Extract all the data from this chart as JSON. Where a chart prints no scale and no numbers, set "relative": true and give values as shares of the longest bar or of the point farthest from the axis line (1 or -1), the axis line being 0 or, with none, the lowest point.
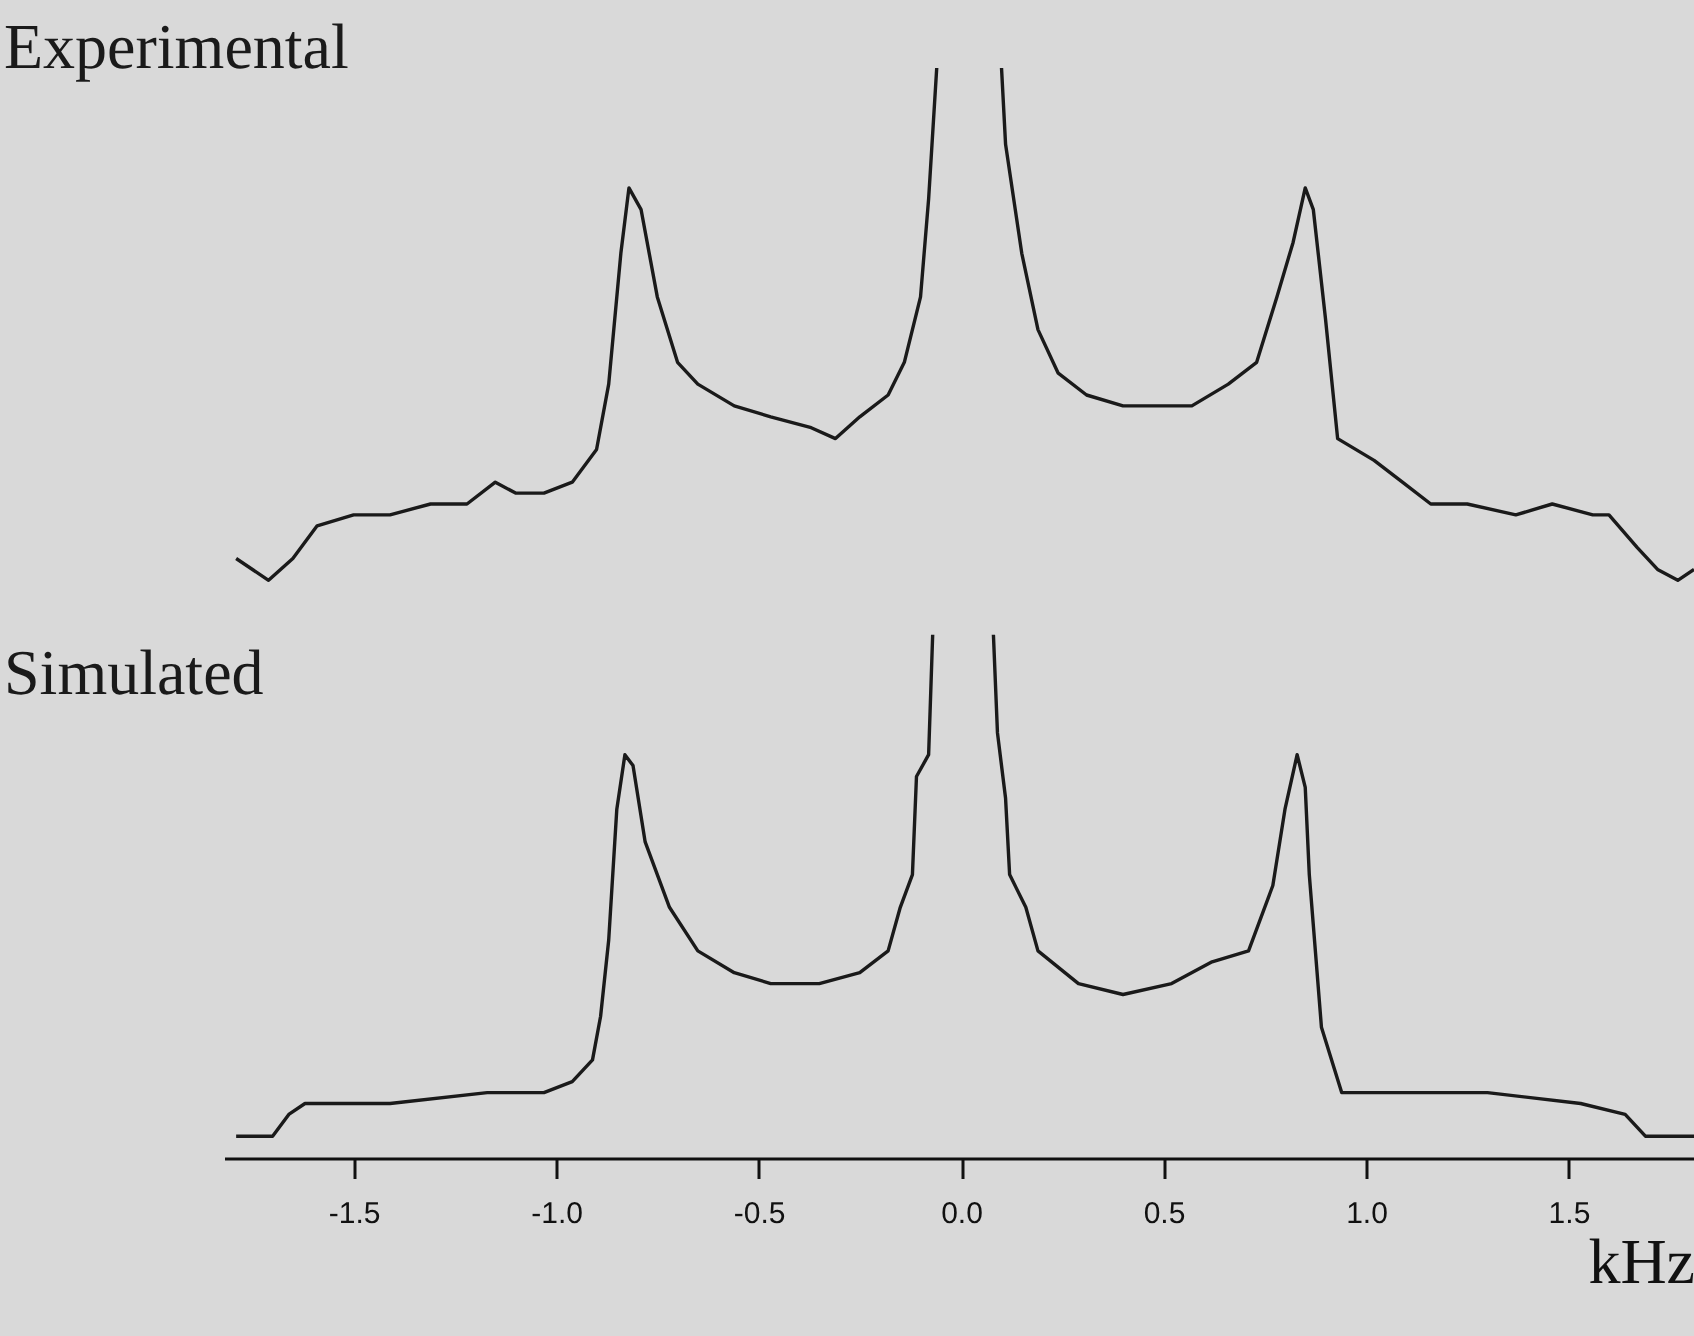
{
  "chart_data": {
    "type": "line",
    "relative": true,
    "xlim": [
      -1.82,
      1.81
    ],
    "xlabel": "kHz",
    "annotations": [
      "Experimental",
      "Simulated"
    ],
    "xticks": [
      -1.5,
      {
        "value": -1,
        "label": "-1.0"
      },
      -0.5,
      {
        "value": 0,
        "label": "0.0"
      },
      0.5,
      {
        "value": 1,
        "label": "1.0"
      },
      1.5
    ],
    "series": [
      {
        "color": "#1a1a1a",
        "x": [
          -1.79,
          -1.71,
          -1.65,
          -1.59,
          -1.5,
          -1.41,
          -1.31,
          -1.22,
          -1.15,
          -1.1,
          -1.03,
          -0.96,
          -0.9,
          -0.87,
          -0.84,
          -0.82,
          -0.79,
          -0.75,
          -0.7,
          -0.65,
          -0.56,
          -0.47,
          -0.37,
          -0.31,
          -0.25,
          -0.18,
          -0.14,
          -0.1,
          -0.08,
          -0.06,
          0.02,
          0.1,
          0.11,
          0.15,
          0.19,
          0.24,
          0.31,
          0.4,
          0.47,
          0.57,
          0.66,
          0.73,
          0.78,
          0.82,
          0.85,
          0.87,
          0.9,
          0.93,
          1.02,
          1.09,
          1.16,
          1.25,
          1.37,
          1.46,
          1.56,
          1.6,
          1.67,
          1.72,
          1.77,
          1.81
        ],
        "values": [
          0.55,
          0.53,
          0.55,
          0.58,
          0.59,
          0.59,
          0.6,
          0.6,
          0.62,
          0.61,
          0.61,
          0.62,
          0.65,
          0.71,
          0.83,
          0.89,
          0.87,
          0.79,
          0.73,
          0.71,
          0.69,
          0.68,
          0.67,
          0.66,
          0.68,
          0.7,
          0.73,
          0.79,
          0.88,
          1.0,
          null,
          1.0,
          0.93,
          0.83,
          0.76,
          0.72,
          0.7,
          0.69,
          0.69,
          0.69,
          0.71,
          0.73,
          0.79,
          0.84,
          0.89,
          0.87,
          0.77,
          0.66,
          0.64,
          0.62,
          0.6,
          0.6,
          0.59,
          0.6,
          0.59,
          0.59,
          0.56,
          0.54,
          0.53,
          0.54
        ]
      },
      {
        "color": "#1a1a1a",
        "x": [
          -1.79,
          -1.7,
          -1.66,
          -1.62,
          -1.41,
          -1.17,
          -1.03,
          -0.96,
          -0.91,
          -0.89,
          -0.87,
          -0.85,
          -0.83,
          -0.81,
          -0.78,
          -0.72,
          -0.65,
          -0.56,
          -0.47,
          -0.35,
          -0.25,
          -0.18,
          -0.15,
          -0.12,
          -0.11,
          -0.08,
          -0.07,
          0.0,
          0.08,
          0.09,
          0.11,
          0.12,
          0.16,
          0.19,
          0.29,
          0.4,
          0.52,
          0.62,
          0.71,
          0.77,
          0.8,
          0.83,
          0.85,
          0.86,
          0.89,
          0.94,
          1.06,
          1.3,
          1.53,
          1.64,
          1.69,
          1.72,
          1.81
        ],
        "values": [
          0.02,
          0.02,
          0.04,
          0.05,
          0.05,
          0.06,
          0.06,
          0.07,
          0.09,
          0.13,
          0.2,
          0.32,
          0.37,
          0.36,
          0.29,
          0.23,
          0.19,
          0.17,
          0.16,
          0.16,
          0.17,
          0.19,
          0.23,
          0.26,
          0.35,
          0.37,
          0.48,
          null,
          0.48,
          0.39,
          0.33,
          0.26,
          0.23,
          0.19,
          0.16,
          0.15,
          0.16,
          0.18,
          0.19,
          0.25,
          0.32,
          0.37,
          0.34,
          0.26,
          0.12,
          0.06,
          0.06,
          0.06,
          0.05,
          0.04,
          0.02,
          0.02,
          0.02
        ]
      }
    ]
  }
}
